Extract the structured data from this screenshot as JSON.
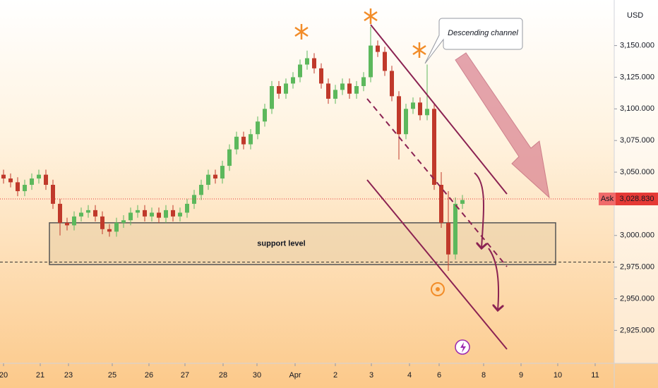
{
  "chart_data": {
    "type": "candlestick",
    "currency": "USD",
    "xlim": [
      0,
      870
    ],
    "xticks": [
      {
        "value": 5,
        "label": "20"
      },
      {
        "value": 57,
        "label": "21"
      },
      {
        "value": 97,
        "label": "23"
      },
      {
        "value": 159,
        "label": "25"
      },
      {
        "value": 211,
        "label": "26"
      },
      {
        "value": 262,
        "label": "27"
      },
      {
        "value": 316,
        "label": "28"
      },
      {
        "value": 364,
        "label": "30"
      },
      {
        "value": 418,
        "label": "Apr"
      },
      {
        "value": 475,
        "label": "2"
      },
      {
        "value": 526,
        "label": "3"
      },
      {
        "value": 580,
        "label": "4"
      },
      {
        "value": 622,
        "label": "6"
      },
      {
        "value": 685,
        "label": "8"
      },
      {
        "value": 738,
        "label": "9"
      },
      {
        "value": 790,
        "label": "10"
      },
      {
        "value": 843,
        "label": "11"
      }
    ],
    "ylim": [
      2899,
      3186
    ],
    "yticks": [
      {
        "value": 3150,
        "label": "3,150.000"
      },
      {
        "value": 3125,
        "label": "3,125.000"
      },
      {
        "value": 3100,
        "label": "3,100.000"
      },
      {
        "value": 3075,
        "label": "3,075.000"
      },
      {
        "value": 3050,
        "label": "3,050.000"
      },
      {
        "value": 3000,
        "label": "3,000.000"
      },
      {
        "value": 2975,
        "label": "2,975.000"
      },
      {
        "value": 2950,
        "label": "2,950.000"
      },
      {
        "value": 2925,
        "label": "2,925.000"
      }
    ],
    "up_color": "#5cb85c",
    "down_color": "#c0392b",
    "x": [
      5,
      15,
      25,
      35,
      45,
      55,
      65,
      75,
      85,
      95,
      105,
      115,
      125,
      135,
      145,
      155,
      165,
      175,
      185,
      195,
      205,
      215,
      225,
      235,
      245,
      255,
      265,
      275,
      285,
      295,
      305,
      315,
      325,
      335,
      345,
      355,
      365,
      375,
      385,
      395,
      405,
      415,
      425,
      435,
      445,
      455,
      465,
      475,
      485,
      495,
      505,
      515,
      525,
      535,
      545,
      555,
      565,
      575,
      585,
      595,
      605,
      615,
      625,
      635,
      645,
      655
    ],
    "open": [
      3048,
      3045,
      3042,
      3035,
      3040,
      3045,
      3048,
      3040,
      3025,
      3010,
      3008,
      3015,
      3018,
      3020,
      3015,
      3005,
      3003,
      3010,
      3012,
      3018,
      3020,
      3015,
      3018,
      3014,
      3020,
      3015,
      3018,
      3025,
      3032,
      3040,
      3048,
      3045,
      3055,
      3068,
      3078,
      3072,
      3080,
      3090,
      3100,
      3118,
      3112,
      3120,
      3125,
      3135,
      3140,
      3132,
      3120,
      3108,
      3115,
      3120,
      3112,
      3118,
      3125,
      3150,
      3145,
      3130,
      3110,
      3080,
      3100,
      3105,
      3095,
      3100,
      3040,
      3010,
      2985,
      3025
    ],
    "high": [
      3052,
      3049,
      3046,
      3044,
      3049,
      3052,
      3052,
      3044,
      3029,
      3014,
      3019,
      3022,
      3024,
      3024,
      3019,
      3009,
      3014,
      3016,
      3022,
      3024,
      3024,
      3022,
      3022,
      3024,
      3024,
      3022,
      3029,
      3036,
      3044,
      3052,
      3052,
      3059,
      3072,
      3082,
      3082,
      3084,
      3094,
      3104,
      3122,
      3122,
      3124,
      3129,
      3139,
      3146,
      3144,
      3136,
      3124,
      3119,
      3124,
      3124,
      3122,
      3129,
      3165,
      3154,
      3149,
      3134,
      3114,
      3104,
      3109,
      3109,
      3135,
      3104,
      3050,
      3035,
      3030,
      3032
    ],
    "low": [
      3041,
      3038,
      3031,
      3031,
      3036,
      3041,
      3036,
      3021,
      3000,
      3004,
      3004,
      3011,
      3014,
      3011,
      3001,
      2999,
      2999,
      3006,
      3008,
      3014,
      3011,
      3011,
      3010,
      3010,
      3011,
      3011,
      3014,
      3021,
      3028,
      3036,
      3041,
      3041,
      3051,
      3064,
      3068,
      3068,
      3076,
      3086,
      3096,
      3108,
      3108,
      3116,
      3121,
      3131,
      3128,
      3116,
      3104,
      3104,
      3111,
      3108,
      3108,
      3114,
      3121,
      3141,
      3126,
      3106,
      3060,
      3076,
      3096,
      3091,
      3091,
      3036,
      3006,
      2972,
      2981,
      3021
    ],
    "close": [
      3045,
      3042,
      3035,
      3040,
      3045,
      3048,
      3040,
      3025,
      3010,
      3008,
      3015,
      3018,
      3020,
      3015,
      3005,
      3003,
      3010,
      3012,
      3018,
      3020,
      3015,
      3018,
      3014,
      3020,
      3015,
      3018,
      3025,
      3032,
      3040,
      3048,
      3045,
      3055,
      3068,
      3078,
      3072,
      3080,
      3090,
      3100,
      3118,
      3112,
      3120,
      3125,
      3135,
      3140,
      3132,
      3120,
      3108,
      3115,
      3120,
      3112,
      3118,
      3125,
      3150,
      3145,
      3130,
      3110,
      3080,
      3100,
      3105,
      3095,
      3100,
      3040,
      3010,
      2985,
      3025,
      3028
    ],
    "support_zone": {
      "label": "support level",
      "range": [
        2977,
        3010
      ],
      "xrange": [
        70,
        787
      ]
    },
    "level_line": 2979,
    "ask": {
      "label": "Ask",
      "value": 3028.83,
      "value_label": "3,028.830"
    },
    "annotation": "Descending channel"
  }
}
